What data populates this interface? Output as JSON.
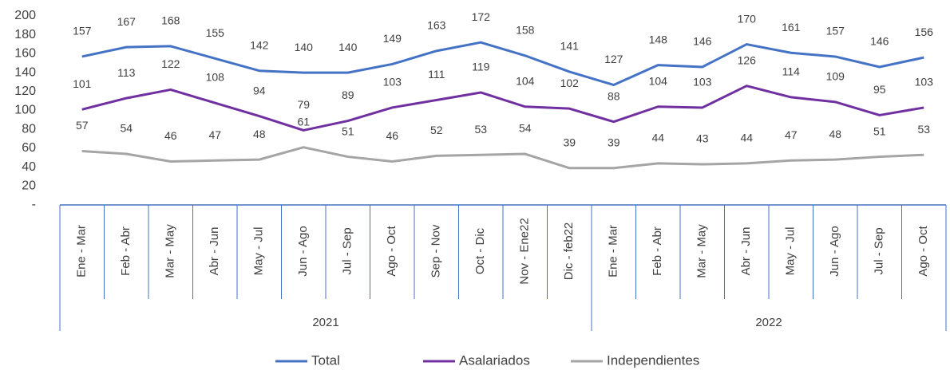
{
  "chart_data": {
    "type": "line",
    "groups": [
      {
        "name": "2021",
        "categories": [
          "Ene - Mar",
          "Feb - Abr",
          "Mar - May",
          "Abr - Jun",
          "May - Jul",
          "Jun - Ago",
          "Jul - Sep",
          "Ago - Oct",
          "Sep - Nov",
          "Oct - Dic",
          "Nov - Ene22",
          "Dic - feb22"
        ]
      },
      {
        "name": "2022",
        "categories": [
          "Ene - Mar",
          "Feb - Abr",
          "Mar - May",
          "Abr - Jun",
          "May - Jul",
          "Jun - Ago",
          "Jul - Sep",
          "Ago - Oct"
        ]
      }
    ],
    "series": [
      {
        "name": "Total",
        "color": "#4472c4",
        "values": [
          157,
          167,
          168,
          155,
          142,
          140,
          140,
          149,
          163,
          172,
          158,
          141,
          127,
          148,
          146,
          170,
          161,
          157,
          146,
          156
        ]
      },
      {
        "name": "Asalariados",
        "color": "#7030a0",
        "values": [
          101,
          113,
          122,
          108,
          94,
          79,
          89,
          103,
          111,
          119,
          104,
          102,
          88,
          104,
          103,
          126,
          114,
          109,
          95,
          103
        ]
      },
      {
        "name": "Independientes",
        "color": "#a5a5a5",
        "values": [
          57,
          54,
          46,
          47,
          48,
          61,
          51,
          46,
          52,
          53,
          54,
          39,
          39,
          44,
          43,
          44,
          47,
          48,
          51,
          53
        ]
      }
    ],
    "ylim": [
      0,
      200
    ],
    "yticks": [
      {
        "value": 0,
        "label": "-"
      },
      20,
      40,
      60,
      80,
      100,
      120,
      140,
      160,
      180,
      200
    ],
    "grid": false,
    "legend": "bottom"
  }
}
